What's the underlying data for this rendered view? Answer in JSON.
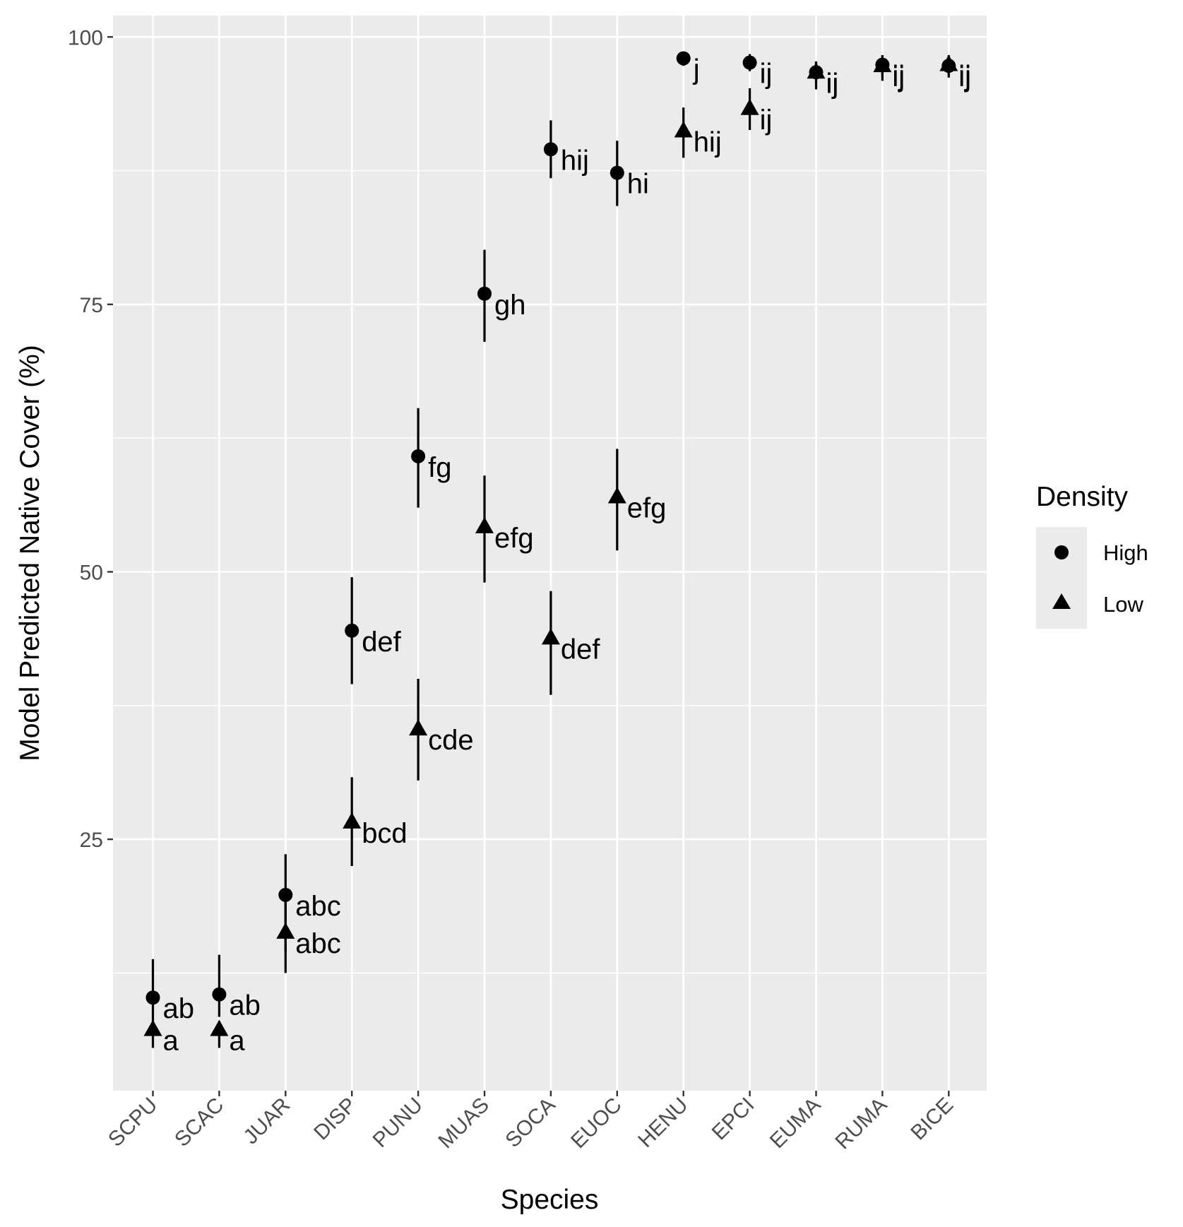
{
  "chart_data": {
    "type": "scatter",
    "xlabel": "Species",
    "ylabel": "Model Predicted Native Cover (%)",
    "categories": [
      "SCPU",
      "SCAC",
      "JUAR",
      "DISP",
      "PUNU",
      "MUAS",
      "SOCA",
      "EUOC",
      "HENU",
      "EPCI",
      "EUMA",
      "RUMA",
      "BICE"
    ],
    "ylim": [
      1.5,
      102
    ],
    "yticks": [
      25,
      50,
      75,
      100
    ],
    "grid": true,
    "background": "#ebebeb",
    "legend": {
      "title": "Density",
      "position": "right",
      "entries": [
        {
          "label": "High",
          "shape": "circle"
        },
        {
          "label": "Low",
          "shape": "triangle"
        }
      ]
    },
    "series": [
      {
        "name": "High",
        "shape": "circle",
        "values": [
          10.2,
          10.5,
          19.8,
          44.5,
          60.8,
          76,
          89.5,
          87.3,
          98,
          97.6,
          96.7,
          97.4,
          97.3
        ],
        "lower": [
          8.0,
          8.4,
          14.5,
          39.5,
          56,
          71.5,
          86.8,
          84.2,
          97.3,
          96.8,
          95.8,
          96.4,
          96.5
        ],
        "upper": [
          13.8,
          14.2,
          23.6,
          49.5,
          65.3,
          80.1,
          92.2,
          90.3,
          98.6,
          98.4,
          97.7,
          98.3,
          98.1
        ],
        "labels": [
          "ab",
          "ab",
          "abc",
          "def",
          "fg",
          "gh",
          "hij",
          "hi",
          "j",
          "ij",
          "ij",
          "ij",
          "ij"
        ]
      },
      {
        "name": "Low",
        "shape": "triangle",
        "values": [
          7.2,
          7.2,
          16.3,
          26.6,
          35.3,
          54.2,
          43.8,
          57,
          91.2,
          93.3,
          96.7,
          97.3,
          97.4
        ],
        "lower": [
          5.5,
          5.5,
          12.5,
          22.5,
          30.5,
          49,
          38.5,
          52,
          88.7,
          91.3,
          95.1,
          95.9,
          96.2
        ],
        "upper": [
          8.0,
          8.0,
          19.8,
          30.8,
          40,
          59,
          48.2,
          61.5,
          93.4,
          95.2,
          97.7,
          98.2,
          98.3
        ],
        "labels": [
          "a",
          "a",
          "abc",
          "bcd",
          "cde",
          "efg",
          "def",
          "efg",
          "hij",
          "ij",
          "ij",
          "ij",
          "ij"
        ]
      }
    ]
  }
}
